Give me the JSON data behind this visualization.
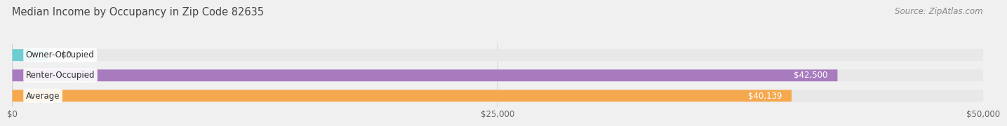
{
  "title": "Median Income by Occupancy in Zip Code 82635",
  "source": "Source: ZipAtlas.com",
  "categories": [
    "Owner-Occupied",
    "Renter-Occupied",
    "Average"
  ],
  "values": [
    0,
    42500,
    40139
  ],
  "bar_colors": [
    "#6dcdd1",
    "#a87bbf",
    "#f5a84e"
  ],
  "value_labels": [
    "$0",
    "$42,500",
    "$40,139"
  ],
  "xlim": [
    0,
    50000
  ],
  "xticks": [
    0,
    25000,
    50000
  ],
  "xtick_labels": [
    "$0",
    "$25,000",
    "$50,000"
  ],
  "bg_color": "#f0f0f0",
  "bar_bg_color": "#e8e8e8",
  "title_color": "#444444",
  "source_color": "#888888",
  "title_fontsize": 10.5,
  "source_fontsize": 8.5,
  "bar_height": 0.58,
  "bar_label_fontsize": 8.5,
  "value_label_fontsize": 8.5
}
